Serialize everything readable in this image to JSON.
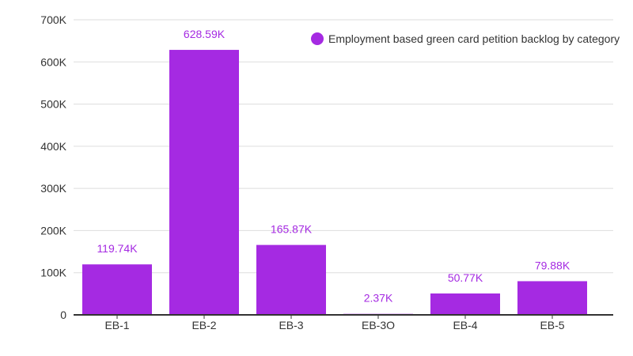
{
  "chart_data": {
    "type": "bar",
    "categories": [
      "EB-1",
      "EB-2",
      "EB-3",
      "EB-3O",
      "EB-4",
      "EB-5"
    ],
    "values": [
      119740,
      628590,
      165870,
      2370,
      50770,
      79880
    ],
    "data_labels": [
      "119.74K",
      "628.59K",
      "165.87K",
      "2.37K",
      "50.77K",
      "79.88K"
    ],
    "series": [
      {
        "name": "Employment based green card petition backlog by category",
        "color": "#a52ae2"
      }
    ],
    "ylim": [
      0,
      700000
    ],
    "yticks": [
      0,
      100000,
      200000,
      300000,
      400000,
      500000,
      600000,
      700000
    ],
    "ytick_labels": [
      "0",
      "100K",
      "200K",
      "300K",
      "400K",
      "500K",
      "600K",
      "700K"
    ],
    "grid": true,
    "legend_position": "top-right",
    "title": "",
    "xlabel": "",
    "ylabel": "",
    "colors": {
      "bar": "#a52ae2",
      "data_label": "#a52ae2",
      "grid": "#dddddd",
      "axis": "#333333"
    }
  }
}
